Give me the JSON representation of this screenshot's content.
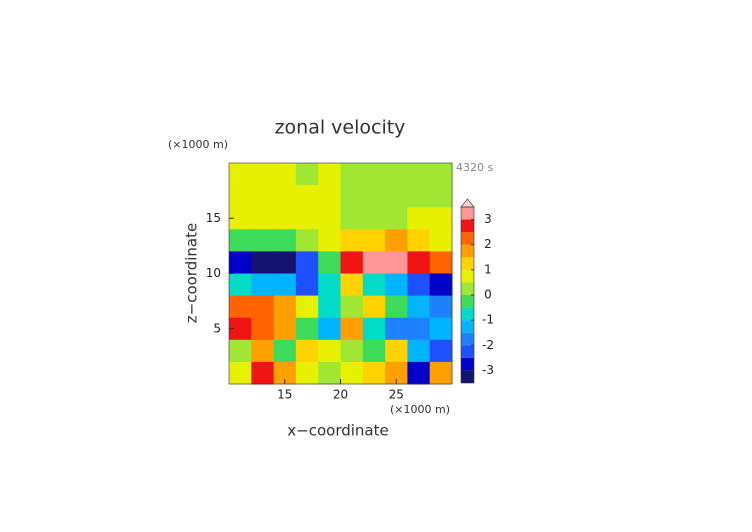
{
  "chart_data": {
    "type": "contour",
    "title": "zonal velocity",
    "x_label": "x−coordinate",
    "y_label": "z−coordinate",
    "x_unit": "(×1000 m)",
    "y_unit": "(×1000 m)",
    "time_label": "4320 s",
    "xlim": [
      10,
      30
    ],
    "ylim": [
      0,
      20
    ],
    "xticks": [
      15,
      20,
      25
    ],
    "yticks": [
      5,
      10,
      15
    ],
    "x": [
      11,
      13,
      15,
      17,
      19,
      21,
      23,
      25,
      27,
      29
    ],
    "y": [
      19,
      17,
      15,
      13,
      11,
      9,
      7,
      5,
      3,
      1
    ],
    "z": [
      [
        0.7,
        0.7,
        0.6,
        0.3,
        0.5,
        0.3,
        0.2,
        0.2,
        0.3,
        0.2
      ],
      [
        0.8,
        0.7,
        0.7,
        0.7,
        0.7,
        0.3,
        0.3,
        0.3,
        0.3,
        0.3
      ],
      [
        0.7,
        0.7,
        0.7,
        0.7,
        0.8,
        0.3,
        0.3,
        0.4,
        0.6,
        0.7
      ],
      [
        -0.3,
        -0.2,
        -0.1,
        0.3,
        0.8,
        1.2,
        1.4,
        1.5,
        1.2,
        0.7
      ],
      [
        -2.8,
        -3.2,
        -3.4,
        -2.5,
        -0.5,
        2.5,
        3.3,
        3.2,
        2.8,
        2.2
      ],
      [
        -0.8,
        -1.2,
        -1.5,
        -2.2,
        -1,
        1.2,
        -0.6,
        -1.5,
        -2.2,
        -2.6
      ],
      [
        2.2,
        2.0,
        1.5,
        0.5,
        -0.6,
        0.3,
        1.0,
        -0.3,
        -1.3,
        -2.0
      ],
      [
        2.6,
        2.3,
        1.8,
        -0.5,
        -1.2,
        1.6,
        -1.0,
        -1.8,
        -1.6,
        -1.2
      ],
      [
        0.3,
        1.5,
        -0.2,
        1.2,
        0.5,
        0.2,
        -0.5,
        1.2,
        -1.5,
        -2.2
      ],
      [
        0.6,
        2.8,
        1.5,
        0.5,
        0.3,
        0.5,
        1.2,
        1.5,
        -2.8,
        1.5
      ]
    ],
    "colorbar": {
      "levels": [
        -3.5,
        -3,
        -2.5,
        -2,
        -1.5,
        -1,
        -0.5,
        0,
        0.5,
        1,
        1.5,
        2,
        2.5,
        3,
        3.5
      ],
      "colors": [
        "#14146e",
        "#0000c8",
        "#1e50ff",
        "#1e82ff",
        "#00b4ff",
        "#00dcc8",
        "#3cdc5a",
        "#a0e632",
        "#e6f000",
        "#ffd200",
        "#ffa000",
        "#ff6400",
        "#f01414",
        "#ff9696"
      ],
      "ticks": [
        -3,
        -2,
        -1,
        0,
        1,
        2,
        3
      ],
      "extend": "max",
      "over_color": "#ffd0d0"
    }
  }
}
